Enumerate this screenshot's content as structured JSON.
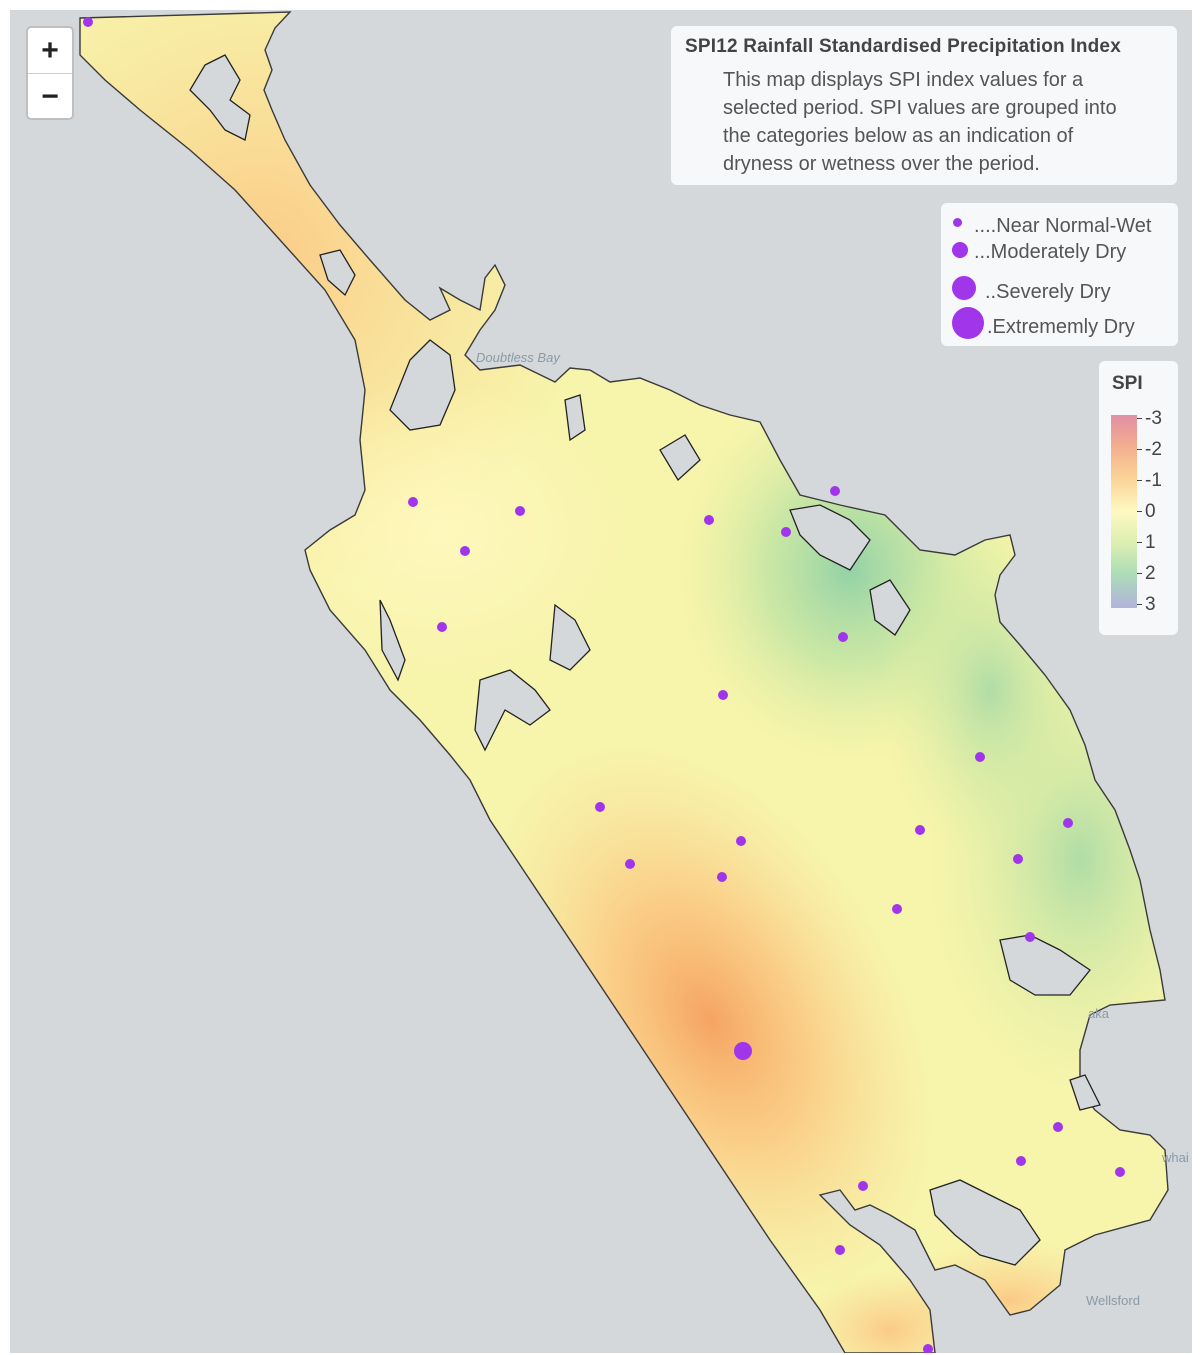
{
  "zoom": {
    "in_label": "+",
    "out_label": "−"
  },
  "info": {
    "title": "SPI12 Rainfall Standardised Precipitation Index",
    "description": "This map displays SPI index values for a selected period. SPI values are grouped into the categories below as an indication of dryness or wetness over the period."
  },
  "size_legend": {
    "dot_color": "#a035ea",
    "items": [
      {
        "label": "....Near Normal-Wet"
      },
      {
        "label": "...Moderately Dry"
      },
      {
        "label": "..Severely Dry"
      },
      {
        "label": ".Extrememly Dry"
      }
    ]
  },
  "spi_legend": {
    "title": "SPI",
    "ticks": [
      "-3",
      "-2",
      "-1",
      "0",
      "1",
      "2",
      "3"
    ]
  },
  "place_labels": {
    "doubtless_bay": "Doubtless Bay",
    "wellsford": "Wellsford",
    "aka": "aka",
    "whai": "whai"
  },
  "stations": [
    {
      "category": "Near Normal-Wet"
    },
    {
      "category": "Extrememly Dry"
    }
  ]
}
